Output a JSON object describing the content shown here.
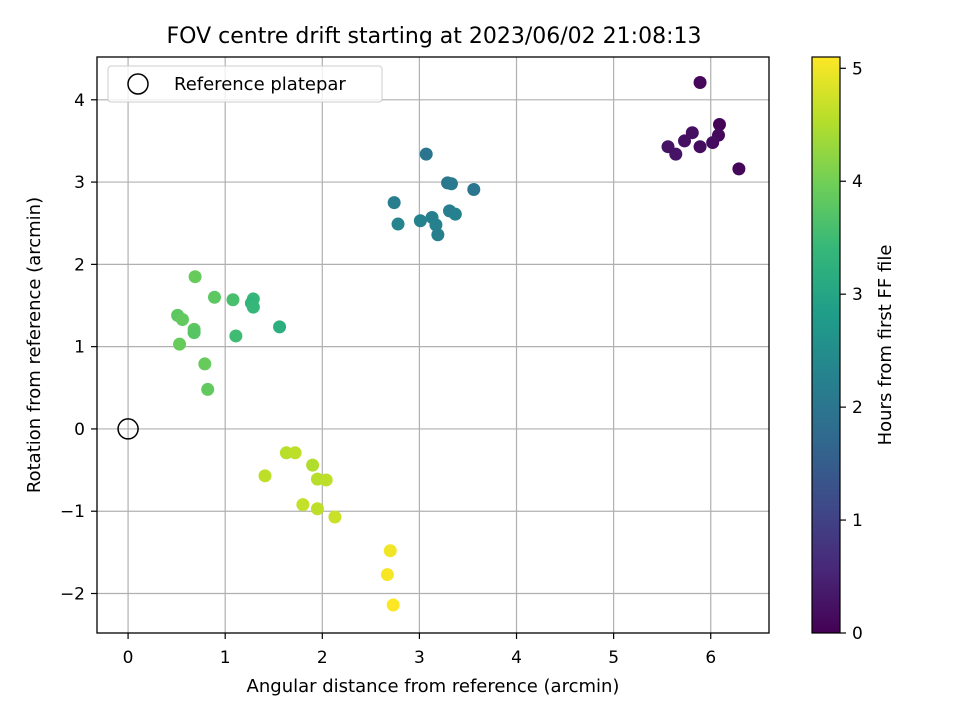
{
  "chart_data": {
    "type": "scatter",
    "title": "FOV centre drift starting at 2023/06/02 21:08:13",
    "xlabel": "Angular distance from reference (arcmin)",
    "ylabel": "Rotation from reference (arcmin)",
    "xlim": [
      -0.32,
      6.6
    ],
    "ylim": [
      -2.48,
      4.52
    ],
    "xticks": [
      0,
      1,
      2,
      3,
      4,
      5,
      6
    ],
    "yticks": [
      -2,
      -1,
      0,
      1,
      2,
      3,
      4
    ],
    "x_tick_labels": [
      "0",
      "1",
      "2",
      "3",
      "4",
      "5",
      "6"
    ],
    "y_tick_labels": [
      "−2",
      "−1",
      "0",
      "1",
      "2",
      "3",
      "4"
    ],
    "grid": true,
    "legend": {
      "placement": "top-left",
      "entries": [
        {
          "label": "Reference platepar",
          "marker": "open-circle",
          "color": "#000000"
        }
      ]
    },
    "reference_point": {
      "x": 0,
      "y": 0
    },
    "colorbar": {
      "label": "Hours from first FF file",
      "range": [
        0,
        5.1
      ],
      "ticks": [
        0,
        1,
        2,
        3,
        4,
        5
      ],
      "tick_labels": [
        "0",
        "1",
        "2",
        "3",
        "4",
        "5"
      ],
      "colormap": "viridis",
      "colormap_stops": [
        "#440154",
        "#482878",
        "#3e4a89",
        "#31688e",
        "#26828e",
        "#1f9e89",
        "#35b779",
        "#6ece58",
        "#b5de2b",
        "#fde725"
      ]
    },
    "points": [
      {
        "x": 5.89,
        "y": 4.21,
        "c": 0.1
      },
      {
        "x": 6.09,
        "y": 3.7,
        "c": 0.05
      },
      {
        "x": 6.08,
        "y": 3.57,
        "c": 0.12
      },
      {
        "x": 6.02,
        "y": 3.48,
        "c": 0.15
      },
      {
        "x": 5.89,
        "y": 3.43,
        "c": 0.18
      },
      {
        "x": 5.81,
        "y": 3.6,
        "c": 0.2
      },
      {
        "x": 5.73,
        "y": 3.5,
        "c": 0.22
      },
      {
        "x": 5.56,
        "y": 3.43,
        "c": 0.25
      },
      {
        "x": 5.64,
        "y": 3.34,
        "c": 0.28
      },
      {
        "x": 6.29,
        "y": 3.16,
        "c": 0.08
      },
      {
        "x": 3.07,
        "y": 3.34,
        "c": 2.0
      },
      {
        "x": 3.29,
        "y": 2.99,
        "c": 2.05
      },
      {
        "x": 3.33,
        "y": 2.98,
        "c": 2.1
      },
      {
        "x": 3.56,
        "y": 2.91,
        "c": 2.0
      },
      {
        "x": 2.74,
        "y": 2.75,
        "c": 2.2
      },
      {
        "x": 3.31,
        "y": 2.65,
        "c": 2.15
      },
      {
        "x": 3.37,
        "y": 2.61,
        "c": 2.25
      },
      {
        "x": 3.13,
        "y": 2.57,
        "c": 2.2
      },
      {
        "x": 3.01,
        "y": 2.53,
        "c": 2.25
      },
      {
        "x": 2.78,
        "y": 2.49,
        "c": 2.3
      },
      {
        "x": 3.17,
        "y": 2.48,
        "c": 2.25
      },
      {
        "x": 3.19,
        "y": 2.36,
        "c": 2.2
      },
      {
        "x": 0.69,
        "y": 1.85,
        "c": 3.9
      },
      {
        "x": 0.89,
        "y": 1.6,
        "c": 3.8
      },
      {
        "x": 1.08,
        "y": 1.57,
        "c": 3.6
      },
      {
        "x": 1.29,
        "y": 1.58,
        "c": 3.4
      },
      {
        "x": 1.27,
        "y": 1.53,
        "c": 3.3
      },
      {
        "x": 1.29,
        "y": 1.48,
        "c": 3.4
      },
      {
        "x": 0.51,
        "y": 1.38,
        "c": 3.8
      },
      {
        "x": 0.56,
        "y": 1.33,
        "c": 3.85
      },
      {
        "x": 1.56,
        "y": 1.24,
        "c": 3.2
      },
      {
        "x": 0.68,
        "y": 1.21,
        "c": 3.8
      },
      {
        "x": 0.68,
        "y": 1.17,
        "c": 3.75
      },
      {
        "x": 1.11,
        "y": 1.13,
        "c": 3.5
      },
      {
        "x": 0.53,
        "y": 1.03,
        "c": 3.9
      },
      {
        "x": 0.79,
        "y": 0.79,
        "c": 3.9
      },
      {
        "x": 0.82,
        "y": 0.48,
        "c": 3.85
      },
      {
        "x": 1.41,
        "y": -0.57,
        "c": 4.6
      },
      {
        "x": 1.63,
        "y": -0.29,
        "c": 4.55
      },
      {
        "x": 1.72,
        "y": -0.29,
        "c": 4.6
      },
      {
        "x": 1.9,
        "y": -0.44,
        "c": 4.5
      },
      {
        "x": 1.95,
        "y": -0.61,
        "c": 4.55
      },
      {
        "x": 2.04,
        "y": -0.62,
        "c": 4.6
      },
      {
        "x": 1.8,
        "y": -0.92,
        "c": 4.65
      },
      {
        "x": 1.95,
        "y": -0.97,
        "c": 4.6
      },
      {
        "x": 2.13,
        "y": -1.07,
        "c": 4.7
      },
      {
        "x": 2.7,
        "y": -1.48,
        "c": 5.0
      },
      {
        "x": 2.67,
        "y": -1.77,
        "c": 5.05
      },
      {
        "x": 2.73,
        "y": -2.14,
        "c": 5.1
      }
    ]
  }
}
